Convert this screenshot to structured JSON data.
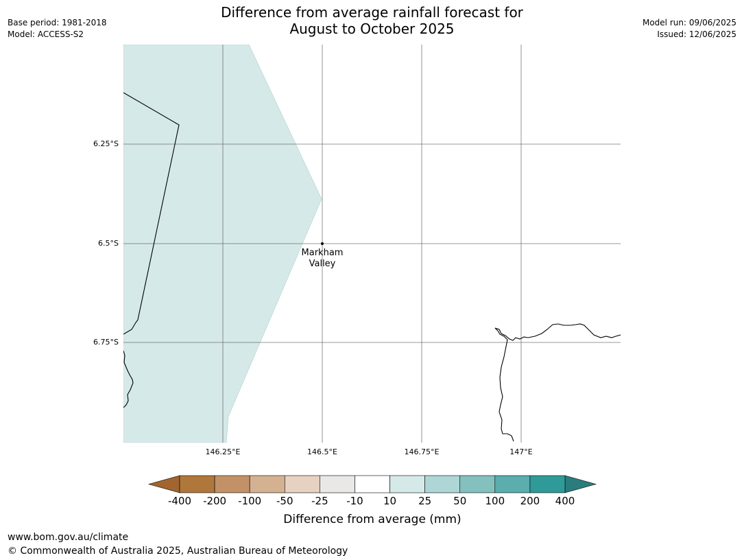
{
  "title": {
    "line1": "Difference from average rainfall forecast for",
    "line2": "August to October 2025"
  },
  "meta_left": {
    "base_period": "Base period: 1981-2018",
    "model": "Model: ACCESS-S2"
  },
  "meta_right": {
    "model_run": "Model run: 09/06/2025",
    "issued": "Issued: 12/06/2025"
  },
  "map": {
    "lat_labels": [
      "6.25°S",
      "6.5°S",
      "6.75°S"
    ],
    "lon_labels": [
      "146.25°E",
      "146.5°E",
      "146.75°E",
      "147°E"
    ],
    "place": {
      "line1": "Markham",
      "line2": "Valley"
    },
    "shaded_category": "10 to 25",
    "shaded_color": "#d5e9e8"
  },
  "colorbar": {
    "label": "Difference from average (mm)",
    "ticks": [
      "-400",
      "-200",
      "-100",
      "-50",
      "-25",
      "-10",
      "10",
      "25",
      "50",
      "100",
      "200",
      "400"
    ],
    "under_color": "#a2652f",
    "colors": [
      "#b0773d",
      "#c29168",
      "#d4b291",
      "#e6d2c1",
      "#eae8e6",
      "#ffffff",
      "#d6e9e9",
      "#aed6d6",
      "#84c1be",
      "#5badae",
      "#309a98"
    ],
    "over_color": "#2a7d7c"
  },
  "footer": {
    "url": "www.bom.gov.au/climate",
    "copyright": "© Commonwealth of Australia 2025, Australian Bureau of Meteorology"
  }
}
